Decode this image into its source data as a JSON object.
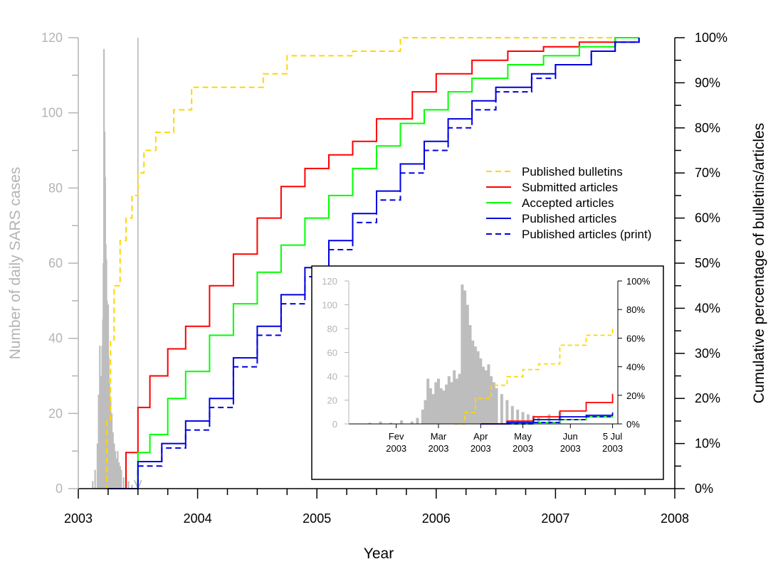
{
  "chart_data": [
    {
      "type": "line",
      "panel": "main",
      "xlabel": "Year",
      "ylabel_left": "Number of daily SARS cases",
      "ylabel_right": "Cumulative percentage of bulletins/articles",
      "xlim": [
        2003,
        2008
      ],
      "ylim_left": [
        0,
        120
      ],
      "ylim_right": [
        0,
        100
      ],
      "x_ticks": [
        "2003",
        "2004",
        "2005",
        "2006",
        "2007",
        "2008"
      ],
      "y_left_ticks": [
        "0",
        "20",
        "40",
        "60",
        "80",
        "100",
        "120"
      ],
      "y_right_ticks": [
        "0%",
        "10%",
        "20%",
        "30%",
        "40%",
        "50%",
        "60%",
        "70%",
        "80%",
        "90%",
        "100%"
      ],
      "grid": false,
      "legend_position": "right-center",
      "legend": [
        "Published bulletins",
        "Submitted articles",
        "Accepted articles",
        "Published articles",
        "Published articles (print)"
      ],
      "marker_x": 2003.5,
      "daily_cases": {
        "color": "#bdbdbd",
        "x": [
          2003.12,
          2003.14,
          2003.16,
          2003.17,
          2003.18,
          2003.19,
          2003.2,
          2003.205,
          2003.21,
          2003.215,
          2003.22,
          2003.225,
          2003.23,
          2003.235,
          2003.24,
          2003.245,
          2003.25,
          2003.255,
          2003.26,
          2003.27,
          2003.28,
          2003.29,
          2003.3,
          2003.31,
          2003.32,
          2003.33,
          2003.34,
          2003.35,
          2003.36,
          2003.38,
          2003.4,
          2003.42,
          2003.45
        ],
        "values": [
          2,
          5,
          12,
          25,
          38,
          30,
          38,
          45,
          60,
          117,
          95,
          83,
          65,
          61,
          50,
          40,
          49,
          35,
          28,
          24,
          20,
          15,
          12,
          10,
          8,
          10,
          7,
          6,
          5,
          3,
          3,
          2,
          1
        ]
      },
      "series": [
        {
          "name": "Published bulletins",
          "color": "#ffd700",
          "dash": true,
          "x": [
            2003.22,
            2003.24,
            2003.27,
            2003.3,
            2003.35,
            2003.4,
            2003.45,
            2003.5,
            2003.55,
            2003.65,
            2003.8,
            2003.95,
            2004.55,
            2004.75,
            2005.3,
            2005.7,
            2007.7
          ],
          "values": [
            0,
            15,
            33,
            45,
            55,
            60,
            65,
            70,
            75,
            79,
            84,
            89,
            92,
            96,
            97,
            100,
            100
          ]
        },
        {
          "name": "Submitted articles",
          "color": "#ff0000",
          "dash": false,
          "x": [
            2003.25,
            2003.4,
            2003.5,
            2003.6,
            2003.75,
            2003.9,
            2004.1,
            2004.3,
            2004.5,
            2004.7,
            2004.9,
            2005.1,
            2005.3,
            2005.5,
            2005.8,
            2006.0,
            2006.3,
            2006.6,
            2006.9,
            2007.2,
            2007.5,
            2007.7
          ],
          "values": [
            0,
            8,
            18,
            25,
            31,
            36,
            45,
            52,
            60,
            67,
            71,
            74,
            77,
            82,
            88,
            92,
            95,
            97,
            98,
            99,
            100,
            100
          ]
        },
        {
          "name": "Accepted articles",
          "color": "#00ff00",
          "dash": false,
          "x": [
            2003.3,
            2003.5,
            2003.6,
            2003.75,
            2003.9,
            2004.1,
            2004.3,
            2004.5,
            2004.7,
            2004.9,
            2005.1,
            2005.3,
            2005.5,
            2005.7,
            2005.9,
            2006.1,
            2006.3,
            2006.6,
            2006.9,
            2007.2,
            2007.5,
            2007.7
          ],
          "values": [
            0,
            8,
            12,
            20,
            26,
            34,
            41,
            48,
            54,
            60,
            65,
            71,
            76,
            81,
            84,
            88,
            91,
            94,
            96,
            98,
            100,
            100
          ]
        },
        {
          "name": "Published articles",
          "color": "#0000e0",
          "dash": false,
          "x": [
            2003.25,
            2003.5,
            2003.7,
            2003.9,
            2004.1,
            2004.3,
            2004.5,
            2004.7,
            2004.9,
            2005.1,
            2005.3,
            2005.5,
            2005.7,
            2005.9,
            2006.1,
            2006.3,
            2006.5,
            2006.8,
            2007.0,
            2007.3,
            2007.5,
            2007.7
          ],
          "values": [
            0,
            6,
            10,
            15,
            20,
            29,
            36,
            43,
            49,
            55,
            61,
            66,
            72,
            77,
            82,
            86,
            89,
            92,
            94,
            97,
            99,
            100
          ]
        },
        {
          "name": "Published articles (print)",
          "color": "#0000e0",
          "dash": true,
          "x": [
            2003.3,
            2003.5,
            2003.7,
            2003.9,
            2004.1,
            2004.3,
            2004.5,
            2004.7,
            2004.9,
            2005.1,
            2005.3,
            2005.5,
            2005.7,
            2005.9,
            2006.1,
            2006.3,
            2006.5,
            2006.8,
            2007.0,
            2007.3,
            2007.5,
            2007.7
          ],
          "values": [
            0,
            5,
            9,
            13,
            18,
            27,
            34,
            41,
            47,
            53,
            59,
            64,
            70,
            75,
            80,
            84,
            88,
            91,
            94,
            97,
            99,
            100
          ]
        }
      ]
    },
    {
      "type": "line",
      "panel": "inset",
      "xlim": [
        2003.0,
        2003.51
      ],
      "ylim_left": [
        0,
        120
      ],
      "ylim_right": [
        0,
        100
      ],
      "x_ticks": [
        {
          "line1": "Fev",
          "line2": "2003",
          "x": 2003.09
        },
        {
          "line1": "Mar",
          "line2": "2003",
          "x": 2003.17
        },
        {
          "line1": "Apr",
          "line2": "2003",
          "x": 2003.25
        },
        {
          "line1": "May",
          "line2": "2003",
          "x": 2003.33
        },
        {
          "line1": "Jun",
          "line2": "2003",
          "x": 2003.42
        },
        {
          "line1": "5 Jul",
          "line2": "2003",
          "x": 2003.5
        }
      ],
      "y_left_ticks": [
        "0",
        "20",
        "40",
        "60",
        "80",
        "100",
        "120"
      ],
      "y_right_ticks": [
        "0%",
        "20%",
        "40%",
        "60%",
        "80%",
        "100%"
      ],
      "daily_cases": {
        "color": "#bdbdbd",
        "x": [
          2003.04,
          2003.06,
          2003.08,
          2003.1,
          2003.12,
          2003.13,
          2003.14,
          2003.145,
          2003.15,
          2003.155,
          2003.16,
          2003.165,
          2003.17,
          2003.175,
          2003.18,
          2003.185,
          2003.19,
          2003.195,
          2003.2,
          2003.205,
          2003.21,
          2003.215,
          2003.22,
          2003.225,
          2003.23,
          2003.235,
          2003.24,
          2003.245,
          2003.25,
          2003.255,
          2003.26,
          2003.265,
          2003.27,
          2003.275,
          2003.28,
          2003.29,
          2003.3,
          2003.31,
          2003.32,
          2003.33,
          2003.34,
          2003.35,
          2003.36,
          2003.38,
          2003.4
        ],
        "values": [
          1,
          2,
          1,
          3,
          2,
          5,
          12,
          20,
          38,
          30,
          25,
          35,
          38,
          30,
          28,
          33,
          40,
          35,
          45,
          38,
          42,
          117,
          112,
          100,
          83,
          70,
          65,
          61,
          55,
          48,
          45,
          50,
          40,
          35,
          30,
          25,
          20,
          15,
          12,
          10,
          8,
          7,
          6,
          8,
          10
        ]
      },
      "series": [
        {
          "name": "Published bulletins",
          "color": "#ffd700",
          "dash": true,
          "x": [
            2003.2,
            2003.22,
            2003.24,
            2003.27,
            2003.3,
            2003.33,
            2003.36,
            2003.4,
            2003.45,
            2003.5
          ],
          "values": [
            0,
            8,
            18,
            27,
            33,
            38,
            42,
            55,
            62,
            67
          ]
        },
        {
          "name": "Submitted articles",
          "color": "#ff0000",
          "dash": false,
          "x": [
            2003.25,
            2003.3,
            2003.35,
            2003.4,
            2003.45,
            2003.5
          ],
          "values": [
            0,
            2,
            5,
            9,
            15,
            21
          ]
        },
        {
          "name": "Accepted articles",
          "color": "#00ff00",
          "dash": false,
          "x": [
            2003.3,
            2003.35,
            2003.4,
            2003.45,
            2003.5
          ],
          "values": [
            0,
            1,
            3,
            5,
            7
          ]
        },
        {
          "name": "Published articles",
          "color": "#0000e0",
          "dash": false,
          "x": [
            2003.25,
            2003.3,
            2003.35,
            2003.4,
            2003.45,
            2003.5
          ],
          "values": [
            0,
            1,
            3,
            5,
            6,
            8
          ]
        },
        {
          "name": "Published articles (print)",
          "color": "#0000e0",
          "dash": true,
          "x": [
            2003.3,
            2003.35,
            2003.4,
            2003.45,
            2003.5
          ],
          "values": [
            0,
            1,
            3,
            5,
            7
          ]
        }
      ]
    }
  ]
}
